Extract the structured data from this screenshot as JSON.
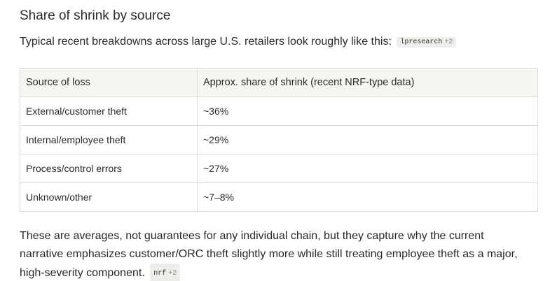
{
  "heading": "Share of shrink by source",
  "intro": {
    "text": "Typical recent breakdowns across large U.S. retailers look roughly like this:",
    "citation": {
      "source": "lpresearch",
      "more": "+2"
    }
  },
  "table": {
    "header": [
      "Source of loss",
      "Approx. share of shrink (recent NRF-type data)"
    ],
    "rows": [
      [
        "External/customer theft",
        "~36%"
      ],
      [
        "Internal/employee theft",
        "~29%"
      ],
      [
        "Process/control errors",
        "~27%"
      ],
      [
        "Unknown/other",
        "~7–8%"
      ]
    ]
  },
  "closing": {
    "text": "These are averages, not guarantees for any individual chain, but they capture why the current narrative emphasizes customer/ORC theft slightly more while still treating employee theft as a major, high-severity component.",
    "citation": {
      "source": "nrf",
      "more": "+2"
    }
  }
}
